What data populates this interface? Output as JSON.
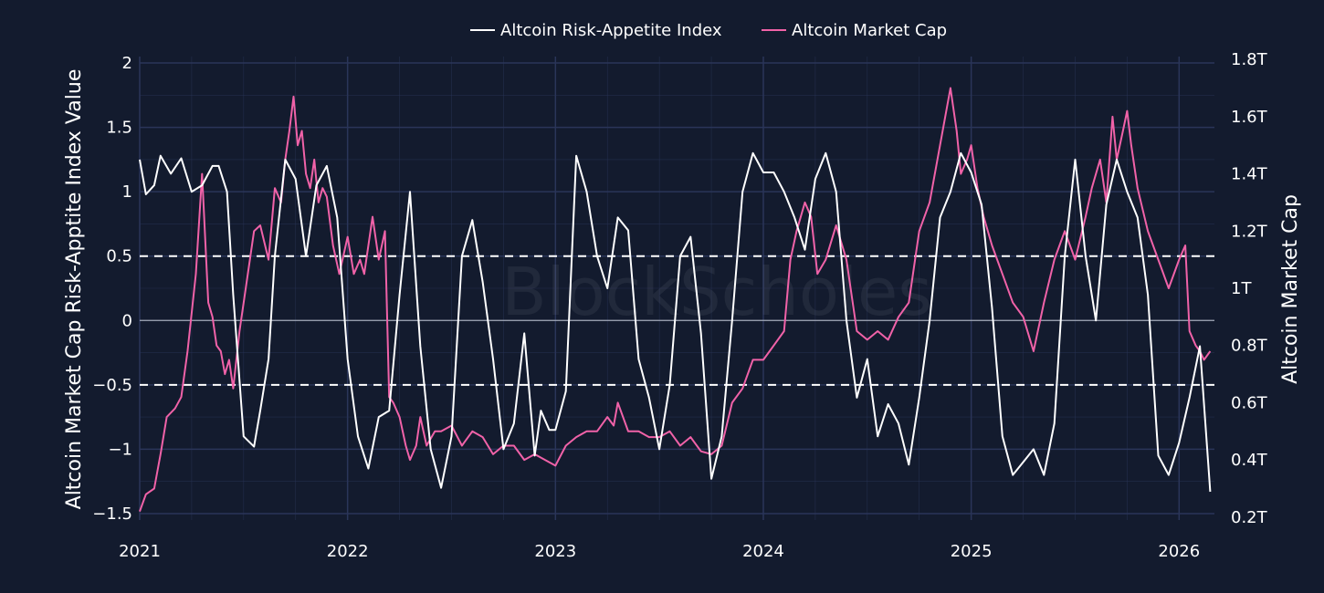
{
  "chart_data": {
    "type": "line",
    "title": "",
    "watermark": "BlockScholes",
    "legend": [
      {
        "name": "Altcoin Risk-Appetite Index",
        "color": "#ffffff"
      },
      {
        "name": "Altcoin Market Cap",
        "color": "#f062a8"
      }
    ],
    "legend_position": "top-center",
    "xlabel": "",
    "ylabel_left": "Altcoin Market Cap Risk-Apptite Index Value",
    "ylabel_right": "Altcoin Market Cap",
    "x_ticks": [
      "2021",
      "2022",
      "2023",
      "2024",
      "2025",
      "2026"
    ],
    "x_range": [
      2021.0,
      2026.17
    ],
    "y_left_ticks": [
      "−1.5",
      "−1",
      "−0.5",
      "0",
      "0.5",
      "1",
      "1.5",
      "2"
    ],
    "y_left_tick_values": [
      -1.5,
      -1,
      -0.5,
      0,
      0.5,
      1,
      1.5,
      2
    ],
    "y_left_range": [
      -1.55,
      2.05
    ],
    "y_right_ticks": [
      "0.2T",
      "0.4T",
      "0.6T",
      "0.8T",
      "1T",
      "1.2T",
      "1.4T",
      "1.6T",
      "1.8T"
    ],
    "y_right_tick_values": [
      0.2,
      0.4,
      0.6,
      0.8,
      1.0,
      1.2,
      1.4,
      1.6,
      1.8
    ],
    "y_right_range": [
      0.19,
      1.81
    ],
    "reference_lines": [
      0.5,
      -0.5
    ],
    "grid": true,
    "series": [
      {
        "name": "Altcoin Risk-Appetite Index",
        "axis": "left",
        "color": "#ffffff",
        "x": [
          2021.0,
          2021.03,
          2021.07,
          2021.1,
          2021.15,
          2021.2,
          2021.25,
          2021.3,
          2021.35,
          2021.38,
          2021.42,
          2021.45,
          2021.5,
          2021.55,
          2021.58,
          2021.62,
          2021.65,
          2021.7,
          2021.75,
          2021.8,
          2021.85,
          2021.9,
          2021.95,
          2022.0,
          2022.05,
          2022.1,
          2022.15,
          2022.2,
          2022.25,
          2022.3,
          2022.35,
          2022.4,
          2022.45,
          2022.5,
          2022.55,
          2022.6,
          2022.65,
          2022.7,
          2022.75,
          2022.8,
          2022.85,
          2022.9,
          2022.93,
          2022.97,
          2023.0,
          2023.05,
          2023.1,
          2023.15,
          2023.2,
          2023.25,
          2023.3,
          2023.35,
          2023.4,
          2023.45,
          2023.5,
          2023.55,
          2023.6,
          2023.65,
          2023.7,
          2023.75,
          2023.8,
          2023.85,
          2023.9,
          2023.95,
          2024.0,
          2024.05,
          2024.1,
          2024.15,
          2024.2,
          2024.25,
          2024.3,
          2024.35,
          2024.4,
          2024.45,
          2024.5,
          2024.55,
          2024.6,
          2024.65,
          2024.7,
          2024.75,
          2024.8,
          2024.85,
          2024.9,
          2024.95,
          2025.0,
          2025.05,
          2025.1,
          2025.15,
          2025.2,
          2025.25,
          2025.3,
          2025.35,
          2025.4,
          2025.45,
          2025.5,
          2025.55,
          2025.6,
          2025.65,
          2025.7,
          2025.75,
          2025.8,
          2025.85,
          2025.9,
          2025.95,
          2026.0,
          2026.05,
          2026.1,
          2026.15
        ],
        "values": [
          1.25,
          0.98,
          1.05,
          1.28,
          1.14,
          1.26,
          1.0,
          1.05,
          1.2,
          1.2,
          1.0,
          0.2,
          -0.9,
          -0.98,
          -0.7,
          -0.3,
          0.5,
          1.25,
          1.1,
          0.5,
          1.05,
          1.2,
          0.8,
          -0.3,
          -0.9,
          -1.15,
          -0.75,
          -0.7,
          0.2,
          1.0,
          -0.2,
          -1.0,
          -1.3,
          -0.9,
          0.5,
          0.78,
          0.3,
          -0.3,
          -1.0,
          -0.8,
          -0.1,
          -1.05,
          -0.7,
          -0.85,
          -0.85,
          -0.55,
          1.28,
          1.0,
          0.5,
          0.25,
          0.8,
          0.7,
          -0.3,
          -0.6,
          -1.0,
          -0.5,
          0.5,
          0.65,
          -0.1,
          -1.23,
          -0.9,
          0.0,
          1.0,
          1.3,
          1.15,
          1.15,
          1.0,
          0.8,
          0.55,
          1.1,
          1.3,
          1.0,
          0.0,
          -0.6,
          -0.3,
          -0.9,
          -0.65,
          -0.8,
          -1.12,
          -0.6,
          0.0,
          0.8,
          1.0,
          1.3,
          1.15,
          0.9,
          0.1,
          -0.9,
          -1.2,
          -1.1,
          -1.0,
          -1.2,
          -0.8,
          0.5,
          1.25,
          0.5,
          0.0,
          0.9,
          1.25,
          1.0,
          0.8,
          0.2,
          -1.05,
          -1.2,
          -0.95,
          -0.6,
          -0.2,
          -1.33
        ]
      },
      {
        "name": "Altcoin Market Cap",
        "axis": "right",
        "color": "#f062a8",
        "x": [
          2021.0,
          2021.03,
          2021.07,
          2021.1,
          2021.13,
          2021.17,
          2021.2,
          2021.23,
          2021.27,
          2021.3,
          2021.33,
          2021.35,
          2021.37,
          2021.39,
          2021.41,
          2021.43,
          2021.45,
          2021.48,
          2021.52,
          2021.55,
          2021.58,
          2021.62,
          2021.65,
          2021.68,
          2021.7,
          2021.72,
          2021.74,
          2021.76,
          2021.78,
          2021.8,
          2021.82,
          2021.84,
          2021.86,
          2021.88,
          2021.9,
          2021.93,
          2021.96,
          2022.0,
          2022.03,
          2022.06,
          2022.08,
          2022.12,
          2022.15,
          2022.18,
          2022.2,
          2022.22,
          2022.25,
          2022.28,
          2022.3,
          2022.33,
          2022.35,
          2022.38,
          2022.42,
          2022.45,
          2022.5,
          2022.55,
          2022.6,
          2022.65,
          2022.7,
          2022.75,
          2022.8,
          2022.85,
          2022.9,
          2022.95,
          2023.0,
          2023.05,
          2023.1,
          2023.15,
          2023.2,
          2023.25,
          2023.28,
          2023.3,
          2023.35,
          2023.4,
          2023.45,
          2023.5,
          2023.55,
          2023.6,
          2023.65,
          2023.7,
          2023.75,
          2023.8,
          2023.85,
          2023.9,
          2023.95,
          2024.0,
          2024.05,
          2024.1,
          2024.13,
          2024.16,
          2024.2,
          2024.23,
          2024.26,
          2024.3,
          2024.35,
          2024.4,
          2024.45,
          2024.5,
          2024.55,
          2024.6,
          2024.65,
          2024.7,
          2024.75,
          2024.8,
          2024.85,
          2024.9,
          2024.93,
          2024.95,
          2024.98,
          2025.0,
          2025.03,
          2025.06,
          2025.1,
          2025.15,
          2025.2,
          2025.25,
          2025.3,
          2025.35,
          2025.4,
          2025.45,
          2025.5,
          2025.55,
          2025.58,
          2025.62,
          2025.65,
          2025.68,
          2025.7,
          2025.73,
          2025.75,
          2025.77,
          2025.8,
          2025.85,
          2025.9,
          2025.95,
          2026.0,
          2026.03,
          2026.05,
          2026.08,
          2026.1,
          2026.12,
          2026.15
        ],
        "values": [
          0.22,
          0.28,
          0.3,
          0.42,
          0.55,
          0.58,
          0.62,
          0.78,
          1.05,
          1.4,
          0.95,
          0.9,
          0.8,
          0.78,
          0.7,
          0.75,
          0.65,
          0.85,
          1.05,
          1.2,
          1.22,
          1.1,
          1.35,
          1.3,
          1.45,
          1.55,
          1.67,
          1.5,
          1.55,
          1.4,
          1.35,
          1.45,
          1.3,
          1.35,
          1.32,
          1.15,
          1.05,
          1.18,
          1.05,
          1.1,
          1.05,
          1.25,
          1.1,
          1.2,
          0.62,
          0.6,
          0.55,
          0.45,
          0.4,
          0.45,
          0.55,
          0.45,
          0.5,
          0.5,
          0.52,
          0.45,
          0.5,
          0.48,
          0.42,
          0.45,
          0.45,
          0.4,
          0.42,
          0.4,
          0.38,
          0.45,
          0.48,
          0.5,
          0.5,
          0.55,
          0.52,
          0.6,
          0.5,
          0.5,
          0.48,
          0.48,
          0.5,
          0.45,
          0.48,
          0.43,
          0.42,
          0.45,
          0.6,
          0.65,
          0.75,
          0.75,
          0.8,
          0.85,
          1.1,
          1.2,
          1.3,
          1.25,
          1.05,
          1.1,
          1.22,
          1.1,
          0.85,
          0.82,
          0.85,
          0.82,
          0.9,
          0.95,
          1.2,
          1.3,
          1.5,
          1.7,
          1.55,
          1.4,
          1.45,
          1.5,
          1.35,
          1.25,
          1.15,
          1.05,
          0.95,
          0.9,
          0.78,
          0.95,
          1.1,
          1.2,
          1.1,
          1.25,
          1.35,
          1.45,
          1.3,
          1.6,
          1.45,
          1.55,
          1.62,
          1.5,
          1.35,
          1.2,
          1.1,
          1.0,
          1.1,
          1.15,
          0.85,
          0.8,
          0.78,
          0.75,
          0.78
        ]
      }
    ]
  }
}
